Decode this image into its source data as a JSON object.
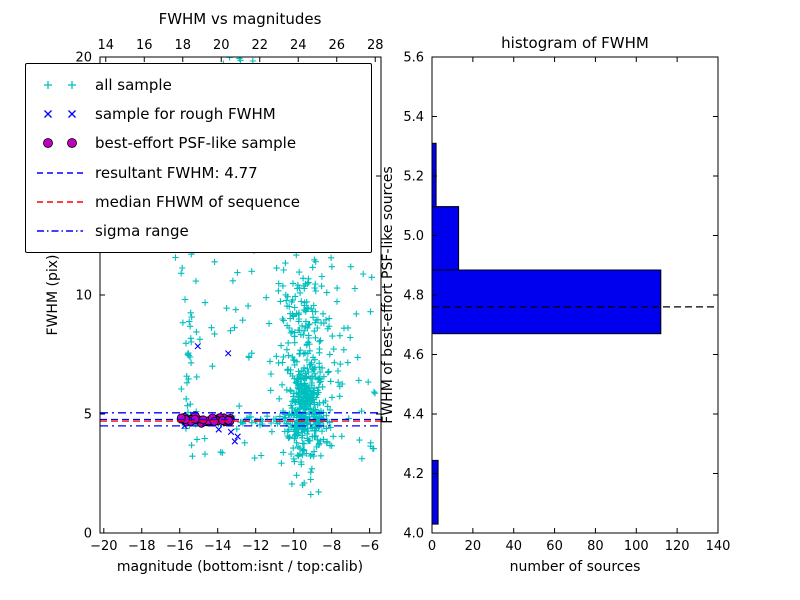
{
  "chart_data": [
    {
      "type": "scatter",
      "title": "FWHM vs magnitudes",
      "xlabel": "magnitude (bottom:isnt / top:calib)",
      "ylabel": "FWHM (pix)",
      "xlim": [
        -20.2,
        -5.4
      ],
      "top_xlim": [
        13.7,
        28.3
      ],
      "ylim": [
        0,
        20
      ],
      "xticks": {
        "values": [
          -20,
          -18,
          -16,
          -14,
          -12,
          -10,
          -8,
          -6
        ],
        "labels": [
          "−20",
          "−18",
          "−16",
          "−14",
          "−12",
          "−10",
          "−8",
          "−6"
        ]
      },
      "top_xticks": {
        "values": [
          14,
          16,
          18,
          20,
          22,
          24,
          26,
          28
        ],
        "labels": [
          "14",
          "16",
          "18",
          "20",
          "22",
          "24",
          "26",
          "28"
        ]
      },
      "yticks": {
        "values": [
          0,
          5,
          10,
          15,
          20
        ],
        "labels": [
          "0",
          "5",
          "10",
          "15",
          "20"
        ]
      },
      "series": [
        {
          "name": "all sample",
          "marker": "plus",
          "color": "#00bfbf",
          "clusters": [
            {
              "n": 320,
              "mag": {
                "dist": "normal",
                "mu": -9.3,
                "sigma": 0.55
              },
              "fwhm": {
                "dist": "normal",
                "mu": 5.1,
                "sigma": 0.9,
                "min": 3.2
              }
            },
            {
              "n": 170,
              "mag": {
                "dist": "normal",
                "mu": -9.5,
                "sigma": 0.75
              },
              "fwhm": {
                "dist": "normal",
                "mu": 7.6,
                "sigma": 1.8,
                "min": 3.4,
                "max": 13.5
              }
            },
            {
              "n": 110,
              "mag": {
                "dist": "uniform",
                "a": -16.3,
                "b": -5.6
              },
              "fwhm": {
                "dist": "uniform",
                "a": 3.0,
                "b": 12.2
              }
            },
            {
              "n": 26,
              "mag": {
                "dist": "normal",
                "mu": -15.5,
                "sigma": 0.18
              },
              "fwhm": {
                "dist": "uniform",
                "a": 4.3,
                "b": 12.0
              }
            },
            {
              "n": 55,
              "mag": {
                "dist": "uniform",
                "a": -16.2,
                "b": -8.6
              },
              "fwhm": {
                "dist": "normal",
                "mu": 4.72,
                "sigma": 0.1
              }
            },
            {
              "n": 14,
              "mag": {
                "dist": "normal",
                "mu": -9.1,
                "sigma": 0.7
              },
              "fwhm": {
                "dist": "uniform",
                "a": 1.6,
                "b": 3.2
              }
            },
            {
              "n": 7,
              "mag": {
                "dist": "normal",
                "mu": -12.6,
                "sigma": 0.35
              },
              "fwhm": {
                "dist": "uniform",
                "a": 19.4,
                "b": 20.0
              }
            },
            {
              "n": 10,
              "mag": {
                "dist": "uniform",
                "a": -8.0,
                "b": -5.8
              },
              "fwhm": {
                "dist": "uniform",
                "a": 3.4,
                "b": 7.0
              }
            }
          ]
        },
        {
          "name": "sample for rough FWHM",
          "marker": "x",
          "color": "#0000ff",
          "points": [
            [
              -15.75,
              4.5
            ],
            [
              -15.3,
              4.7
            ],
            [
              -15.05,
              7.85
            ],
            [
              -14.6,
              4.62
            ],
            [
              -14.2,
              4.72
            ],
            [
              -13.95,
              4.35
            ],
            [
              -13.85,
              4.68
            ],
            [
              -13.55,
              4.6
            ],
            [
              -13.45,
              7.55
            ],
            [
              -13.3,
              4.25
            ],
            [
              -13.1,
              3.85
            ],
            [
              -12.95,
              4.05
            ]
          ]
        },
        {
          "name": "best-effort PSF-like sample",
          "marker": "circle",
          "color": "#bf00bf",
          "edge": "#000000",
          "clusters": [
            {
              "n": 46,
              "mag": {
                "dist": "uniform",
                "a": -16.0,
                "b": -13.3
              },
              "fwhm": {
                "dist": "normal",
                "mu": 4.74,
                "sigma": 0.06
              }
            }
          ]
        }
      ],
      "lines": [
        {
          "name": "sigma range upper",
          "value": 5.05,
          "style": "dashdot",
          "color": "#0000ff"
        },
        {
          "name": "sigma range lower",
          "value": 4.5,
          "style": "dashdot",
          "color": "#0000ff"
        },
        {
          "name": "median FHWM of sequence",
          "value": 4.7,
          "style": "dashed",
          "color": "#ff0000"
        },
        {
          "name": "resultant FWHM",
          "value": 4.77,
          "style": "dashed",
          "color": "#0000ff"
        }
      ],
      "legend": {
        "entries": [
          {
            "label": "all sample",
            "marker": "plus",
            "color": "#00bfbf"
          },
          {
            "label": "sample for rough FWHM",
            "marker": "x",
            "color": "#0000ff"
          },
          {
            "label": "best-effort PSF-like sample",
            "marker": "circle",
            "color": "#bf00bf",
            "edge": "#000000"
          },
          {
            "label": "resultant FWHM: 4.77",
            "marker": "dashed",
            "color": "#0000ff"
          },
          {
            "label": "median FHWM of sequence",
            "marker": "dashed",
            "color": "#ff0000"
          },
          {
            "label": "sigma range",
            "marker": "dashdot",
            "color": "#0000ff"
          }
        ]
      }
    },
    {
      "type": "bar",
      "orientation": "horizontal",
      "title": "histogram of FWHM",
      "xlabel": "number of sources",
      "ylabel": "FWHM of best-effort PSF-like sources",
      "xlim": [
        0,
        140
      ],
      "ylim": [
        4.0,
        5.6
      ],
      "xticks": {
        "values": [
          0,
          20,
          40,
          60,
          80,
          100,
          120,
          140
        ],
        "labels": [
          "0",
          "20",
          "40",
          "60",
          "80",
          "100",
          "120",
          "140"
        ]
      },
      "yticks": {
        "values": [
          4.0,
          4.2,
          4.4,
          4.6,
          4.8,
          5.0,
          5.2,
          5.4,
          5.6
        ],
        "labels": [
          "4.0",
          "4.2",
          "4.4",
          "4.6",
          "4.8",
          "5.0",
          "5.2",
          "5.4",
          "5.6"
        ]
      },
      "bin_edges": [
        4.03,
        4.244,
        4.457,
        4.67,
        4.884,
        5.097,
        5.31
      ],
      "counts": [
        3,
        0,
        0,
        112,
        13,
        2
      ],
      "bar_color": "#0000ee",
      "bar_edge": "#000000",
      "median_line": {
        "value": 4.76,
        "style": "dashed",
        "color": "#000000"
      }
    }
  ]
}
